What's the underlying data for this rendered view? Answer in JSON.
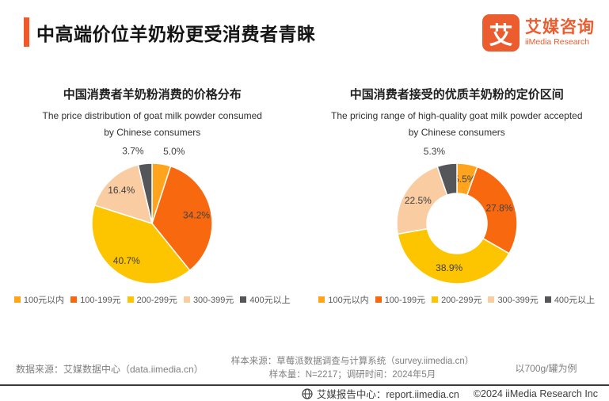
{
  "page": {
    "background": "#ffffff",
    "accent": "#F1592A"
  },
  "header": {
    "title": "中高端价位羊奶粉更受消费者青睐"
  },
  "logo": {
    "mark": "艾",
    "name_cn": "艾媒咨询",
    "name_en": "iiMedia Research"
  },
  "charts": [
    {
      "title_cn": "中国消费者羊奶粉消费的价格分布",
      "subtitle_en_line1": "The price distribution of goat milk powder consumed",
      "subtitle_en_line2": "by Chinese consumers"
    },
    {
      "title_cn": "中国消费者接受的优质羊奶粉的定价区间",
      "subtitle_en_line1": "The pricing range of high-quality goat milk powder accepted",
      "subtitle_en_line2": "by Chinese consumers"
    }
  ],
  "chart_data": [
    {
      "type": "pie",
      "title": "中国消费者羊奶粉消费的价格分布",
      "categories": [
        "100元以内",
        "100-199元",
        "200-299元",
        "300-399元",
        "400元以上"
      ],
      "values": [
        5.0,
        34.2,
        40.7,
        16.4,
        3.7
      ],
      "colors": [
        "#FFA41C",
        "#F8690F",
        "#FDC500",
        "#F9CCA2",
        "#55565A"
      ],
      "label_positions": [
        "outside",
        "inside",
        "inside",
        "inside",
        "outside"
      ],
      "donut": false,
      "start_angle_deg": 0,
      "clockwise": true,
      "legend_position": "bottom"
    },
    {
      "type": "pie",
      "title": "中国消费者接受的优质羊奶粉的定价区间",
      "categories": [
        "100元以内",
        "100-199元",
        "200-299元",
        "300-399元",
        "400元以上"
      ],
      "values": [
        5.5,
        27.8,
        38.9,
        22.5,
        5.3
      ],
      "colors": [
        "#FFA41C",
        "#F8690F",
        "#FDC500",
        "#F9CCA2",
        "#55565A"
      ],
      "label_positions": [
        "inside",
        "inside",
        "inside",
        "inside",
        "outside"
      ],
      "donut": true,
      "start_angle_deg": 0,
      "clockwise": true,
      "legend_position": "bottom"
    }
  ],
  "colors": {
    "slice_label_text": "#404040",
    "legend_text": "#595959",
    "footer_text": "#7f7f7f",
    "bottom_bar_text": "#3d3d3d"
  },
  "footer": {
    "source_left": "数据来源：艾媒数据中心（data.iimedia.cn）",
    "sample_line1": "样本来源：草莓派数据调查与计算系统（survey.iimedia.cn）",
    "sample_line2": "样本量：N=2217；调研时间：2024年5月",
    "note_right": "以700g/罐为例"
  },
  "bottom_bar": {
    "report_center": "艾媒报告中心：report.iimedia.cn",
    "copyright": "©2024  iiMedia Research Inc"
  }
}
